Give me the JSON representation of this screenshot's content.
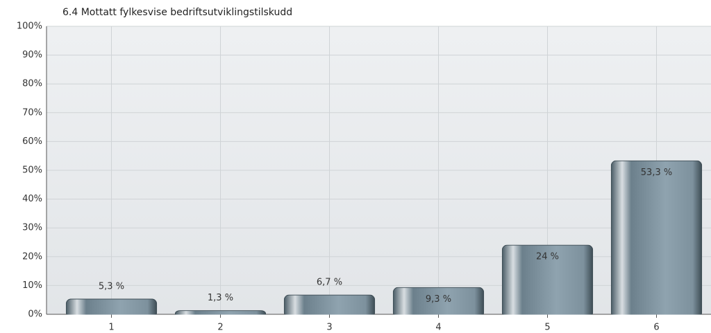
{
  "chart_data": {
    "type": "bar",
    "title": "6.4 Mottatt fylkesvise bedriftsutviklingstilskudd",
    "categories": [
      "1",
      "2",
      "3",
      "4",
      "5",
      "6"
    ],
    "values": [
      5.3,
      1.3,
      6.7,
      9.3,
      24,
      53.3
    ],
    "value_labels": [
      "5,3 %",
      "1,3 %",
      "6,7 %",
      "9,3 %",
      "24 %",
      "53,3 %"
    ],
    "color": "#6f8592",
    "ylim": [
      0,
      100
    ],
    "yticks": [
      {
        "value": 0,
        "label": "0%"
      },
      {
        "value": 10,
        "label": "10%"
      },
      {
        "value": 20,
        "label": "20%"
      },
      {
        "value": 30,
        "label": "30%"
      },
      {
        "value": 40,
        "label": "40%"
      },
      {
        "value": 50,
        "label": "50%"
      },
      {
        "value": 60,
        "label": "60%"
      },
      {
        "value": 70,
        "label": "70%"
      },
      {
        "value": 80,
        "label": "80%"
      },
      {
        "value": 90,
        "label": "90%"
      },
      {
        "value": 100,
        "label": "100%"
      }
    ],
    "grid": true
  }
}
